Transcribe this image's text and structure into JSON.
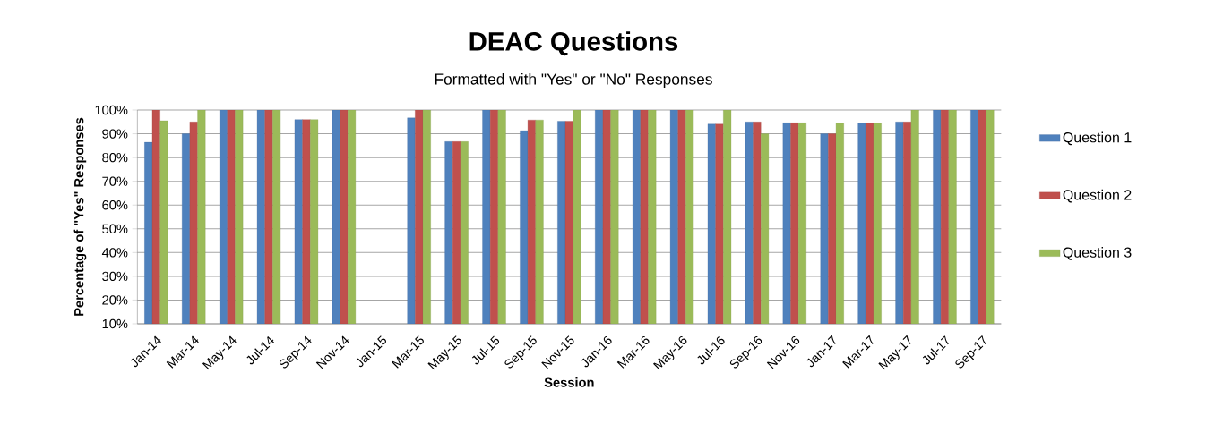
{
  "chart_data": {
    "type": "bar",
    "title": "DEAC Questions",
    "subtitle": "Formatted with \"Yes\" or \"No\" Responses",
    "xlabel": "Session",
    "ylabel": "Percentage of \"Yes\" Responses",
    "categories": [
      "Jan-14",
      "Mar-14",
      "May-14",
      "Jul-14",
      "Sep-14",
      "Nov-14",
      "Jan-15",
      "Mar-15",
      "May-15",
      "Jul-15",
      "Sep-15",
      "Nov-15",
      "Jan-16",
      "Mar-16",
      "May-16",
      "Jul-16",
      "Sep-16",
      "Nov-16",
      "Jan-17",
      "Mar-17",
      "May-17",
      "Jul-17",
      "Sep-17"
    ],
    "series": [
      {
        "name": "Question 1",
        "color": "#4f81bd",
        "values": [
          86.4,
          90,
          100,
          100,
          96,
          100,
          null,
          96.7,
          86.7,
          100,
          91.3,
          95.3,
          100,
          100,
          100,
          94.1,
          95,
          94.6,
          90,
          94.5,
          95,
          100,
          100
        ]
      },
      {
        "name": "Question 2",
        "color": "#c0504d",
        "values": [
          100,
          95,
          100,
          100,
          96,
          100,
          null,
          100,
          86.7,
          100,
          95.8,
          95.3,
          100,
          100,
          100,
          94.1,
          95,
          94.6,
          90,
          94.5,
          95,
          100,
          100
        ]
      },
      {
        "name": "Question 3",
        "color": "#9bbb59",
        "values": [
          95.5,
          100,
          100,
          100,
          96,
          100,
          null,
          100,
          86.7,
          100,
          95.8,
          100,
          100,
          100,
          100,
          100,
          90,
          94.6,
          94.5,
          94.5,
          100,
          100,
          100
        ]
      }
    ],
    "ylim": [
      10,
      100
    ],
    "yticks": [
      {
        "value": 10,
        "label": "10%"
      },
      {
        "value": 20,
        "label": "20%"
      },
      {
        "value": 30,
        "label": "30%"
      },
      {
        "value": 40,
        "label": "40%"
      },
      {
        "value": 50,
        "label": "50%"
      },
      {
        "value": 60,
        "label": "60%"
      },
      {
        "value": 70,
        "label": "70%"
      },
      {
        "value": 80,
        "label": "80%"
      },
      {
        "value": 90,
        "label": "90%"
      },
      {
        "value": 100,
        "label": "100%"
      }
    ],
    "grid": "y",
    "legend": "right"
  }
}
